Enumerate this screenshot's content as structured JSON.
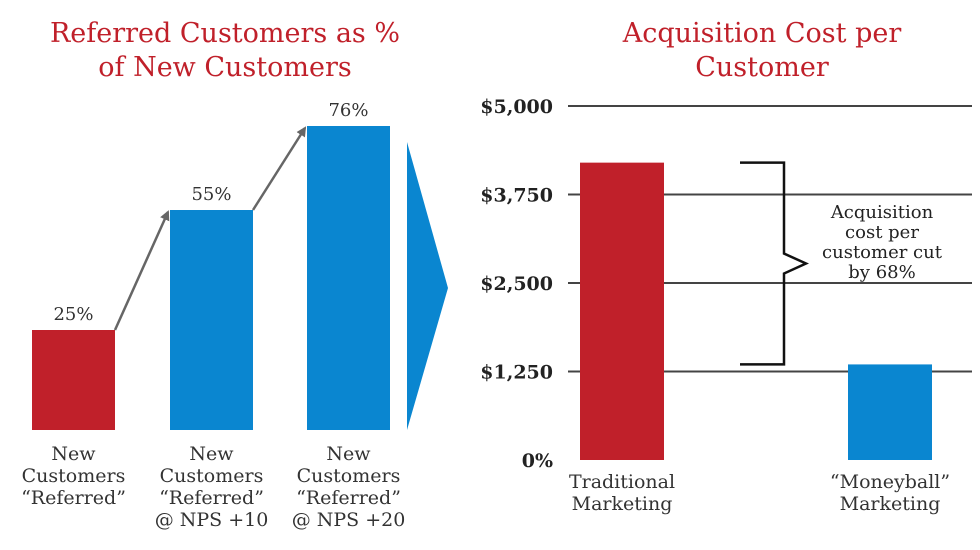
{
  "colors": {
    "red": "#c0202a",
    "blue": "#0a86d0",
    "arrow": "#666666",
    "grid": "#444444"
  },
  "chart_data": [
    {
      "type": "bar",
      "title": "Referred Customers as % of New Customers",
      "title_lines": [
        "Referred Customers as %",
        "of New Customers"
      ],
      "categories": [
        "New Customers “Referred”",
        "New Customers “Referred” @ NPS +10",
        "New Customers “Referred” @ NPS +20"
      ],
      "category_lines": [
        [
          "New",
          "Customers",
          "“Referred”"
        ],
        [
          "New",
          "Customers",
          "“Referred”",
          "@ NPS +10"
        ],
        [
          "New",
          "Customers",
          "“Referred”",
          "@ NPS +20"
        ]
      ],
      "values": [
        25,
        55,
        76
      ],
      "value_labels": [
        "25%",
        "55%",
        "76%"
      ],
      "bar_colors": [
        "#c0202a",
        "#0a86d0",
        "#0a86d0"
      ],
      "ylim": [
        0,
        100
      ],
      "grid": false
    },
    {
      "type": "bar",
      "title": "Acquisition Cost per Customer",
      "title_lines": [
        "Acquisition Cost per",
        "Customer"
      ],
      "categories": [
        "Traditional Marketing",
        "“Moneyball” Marketing"
      ],
      "category_lines": [
        [
          "Traditional",
          "Marketing"
        ],
        [
          "“Moneyball”",
          "Marketing"
        ]
      ],
      "values": [
        4200,
        1350
      ],
      "bar_colors": [
        "#c0202a",
        "#0a86d0"
      ],
      "ylim": [
        0,
        5000
      ],
      "yticks": [
        0,
        1250,
        2500,
        3750,
        5000
      ],
      "ytick_labels": [
        "0%",
        "$1,250",
        "$2,500",
        "$3,750",
        "$5,000"
      ],
      "grid": true,
      "annotation_lines": [
        "Acquisition",
        "cost per",
        "customer cut",
        "by 68%"
      ]
    }
  ]
}
